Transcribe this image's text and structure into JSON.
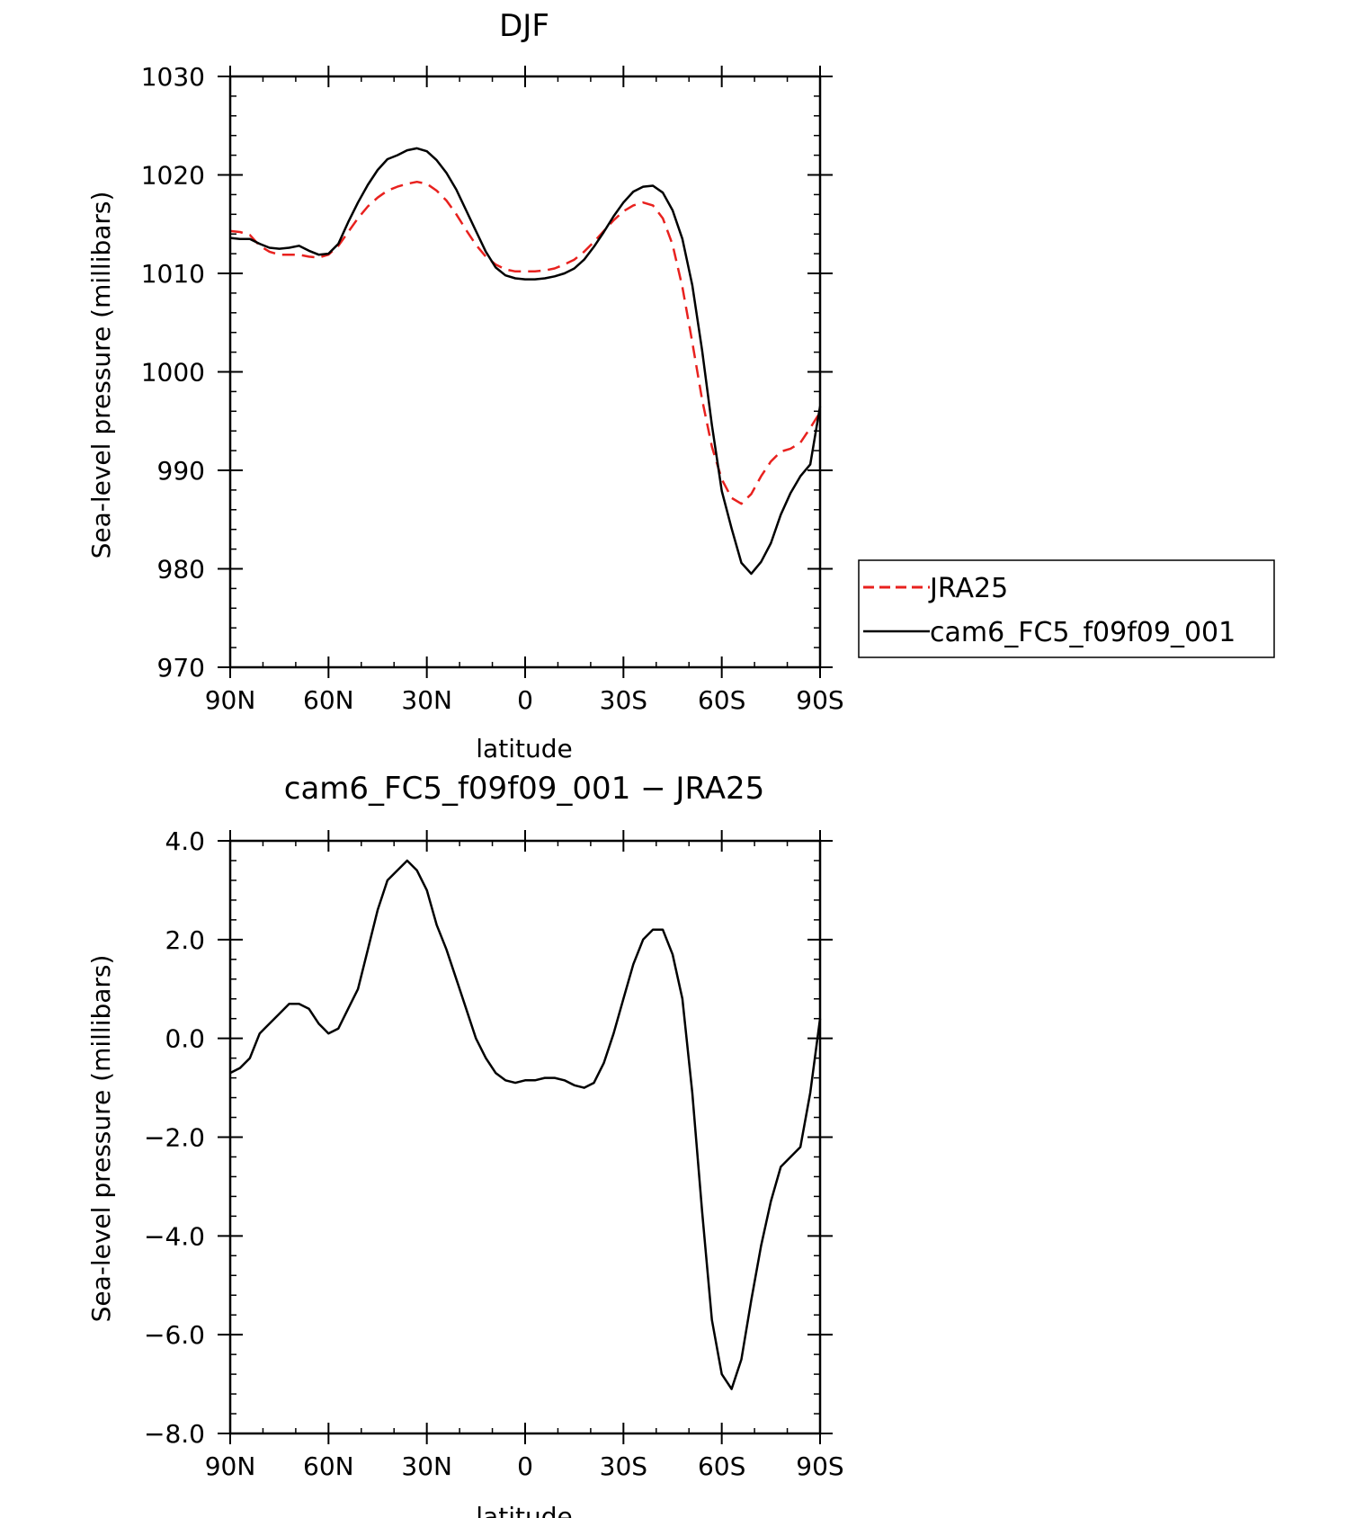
{
  "chart_data": [
    {
      "type": "line",
      "title": "DJF",
      "xlabel": "latitude",
      "ylabel": "Sea-level pressure (millibars)",
      "xlim": [
        90,
        -90
      ],
      "ylim": [
        970,
        1030
      ],
      "xticks": [
        {
          "value": 90,
          "label": "90N"
        },
        {
          "value": 60,
          "label": "60N"
        },
        {
          "value": 30,
          "label": "30N"
        },
        {
          "value": 0,
          "label": "0"
        },
        {
          "value": -30,
          "label": "30S"
        },
        {
          "value": -60,
          "label": "60S"
        },
        {
          "value": -90,
          "label": "90S"
        }
      ],
      "yticks": [
        {
          "value": 1030,
          "label": "1030"
        },
        {
          "value": 1020,
          "label": "1020"
        },
        {
          "value": 1010,
          "label": "1010"
        },
        {
          "value": 1000,
          "label": "1000"
        },
        {
          "value": 990,
          "label": "990"
        },
        {
          "value": 980,
          "label": "980"
        },
        {
          "value": 970,
          "label": "970"
        }
      ],
      "legend": {
        "placement": "right",
        "entries": [
          {
            "label": "JRA25",
            "color": "#e8211e",
            "dash": "dashed"
          },
          {
            "label": "cam6_FC5_f09f09_001",
            "color": "#000000",
            "dash": "solid"
          }
        ]
      },
      "series": [
        {
          "name": "JRA25",
          "color": "#e8211e",
          "dash": "dashed",
          "points": [
            [
              90,
              1014.3
            ],
            [
              87,
              1014.2
            ],
            [
              84,
              1013.9
            ],
            [
              81,
              1012.8
            ],
            [
              78,
              1012.2
            ],
            [
              75,
              1011.9
            ],
            [
              72,
              1011.9
            ],
            [
              69,
              1011.9
            ],
            [
              66,
              1011.7
            ],
            [
              63,
              1011.6
            ],
            [
              60,
              1011.9
            ],
            [
              57,
              1012.8
            ],
            [
              54,
              1014.2
            ],
            [
              51,
              1015.6
            ],
            [
              48,
              1016.8
            ],
            [
              45,
              1017.7
            ],
            [
              42,
              1018.4
            ],
            [
              39,
              1018.8
            ],
            [
              36,
              1019.1
            ],
            [
              33,
              1019.3
            ],
            [
              30,
              1019.1
            ],
            [
              27,
              1018.4
            ],
            [
              24,
              1017.4
            ],
            [
              21,
              1016.0
            ],
            [
              18,
              1014.4
            ],
            [
              15,
              1012.9
            ],
            [
              12,
              1011.7
            ],
            [
              9,
              1010.9
            ],
            [
              6,
              1010.4
            ],
            [
              3,
              1010.2
            ],
            [
              0,
              1010.2
            ],
            [
              -3,
              1010.2
            ],
            [
              -6,
              1010.3
            ],
            [
              -9,
              1010.5
            ],
            [
              -12,
              1010.9
            ],
            [
              -15,
              1011.4
            ],
            [
              -18,
              1012.2
            ],
            [
              -21,
              1013.2
            ],
            [
              -24,
              1014.3
            ],
            [
              -27,
              1015.4
            ],
            [
              -30,
              1016.3
            ],
            [
              -33,
              1016.9
            ],
            [
              -36,
              1017.2
            ],
            [
              -39,
              1016.9
            ],
            [
              -42,
              1015.6
            ],
            [
              -45,
              1012.9
            ],
            [
              -48,
              1008.6
            ],
            [
              -51,
              1003.0
            ],
            [
              -54,
              997.2
            ],
            [
              -57,
              992.4
            ],
            [
              -60,
              989.1
            ],
            [
              -63,
              987.2
            ],
            [
              -66,
              986.6
            ],
            [
              -69,
              987.6
            ],
            [
              -72,
              989.4
            ],
            [
              -75,
              990.9
            ],
            [
              -78,
              991.9
            ],
            [
              -81,
              992.2
            ],
            [
              -84,
              992.8
            ],
            [
              -87,
              994.3
            ],
            [
              -90,
              995.9
            ]
          ]
        },
        {
          "name": "cam6_FC5_f09f09_001",
          "color": "#000000",
          "dash": "solid",
          "points": [
            [
              90,
              1013.6
            ],
            [
              87,
              1013.5
            ],
            [
              84,
              1013.5
            ],
            [
              81,
              1013.0
            ],
            [
              78,
              1012.6
            ],
            [
              75,
              1012.5
            ],
            [
              72,
              1012.6
            ],
            [
              69,
              1012.8
            ],
            [
              66,
              1012.3
            ],
            [
              63,
              1011.9
            ],
            [
              60,
              1012.0
            ],
            [
              57,
              1013.0
            ],
            [
              54,
              1015.2
            ],
            [
              51,
              1017.2
            ],
            [
              48,
              1019.0
            ],
            [
              45,
              1020.5
            ],
            [
              42,
              1021.6
            ],
            [
              39,
              1022.0
            ],
            [
              36,
              1022.5
            ],
            [
              33,
              1022.7
            ],
            [
              30,
              1022.4
            ],
            [
              27,
              1021.5
            ],
            [
              24,
              1020.2
            ],
            [
              21,
              1018.5
            ],
            [
              18,
              1016.4
            ],
            [
              15,
              1014.3
            ],
            [
              12,
              1012.2
            ],
            [
              9,
              1010.6
            ],
            [
              6,
              1009.8
            ],
            [
              3,
              1009.5
            ],
            [
              0,
              1009.4
            ],
            [
              -3,
              1009.4
            ],
            [
              -6,
              1009.5
            ],
            [
              -9,
              1009.7
            ],
            [
              -12,
              1010.0
            ],
            [
              -15,
              1010.5
            ],
            [
              -18,
              1011.4
            ],
            [
              -21,
              1012.7
            ],
            [
              -24,
              1014.2
            ],
            [
              -27,
              1015.8
            ],
            [
              -30,
              1017.2
            ],
            [
              -33,
              1018.3
            ],
            [
              -36,
              1018.8
            ],
            [
              -39,
              1018.9
            ],
            [
              -42,
              1018.2
            ],
            [
              -45,
              1016.4
            ],
            [
              -48,
              1013.5
            ],
            [
              -51,
              1008.8
            ],
            [
              -54,
              1002.2
            ],
            [
              -57,
              994.6
            ],
            [
              -60,
              987.9
            ],
            [
              -63,
              984.1
            ],
            [
              -66,
              980.6
            ],
            [
              -69,
              979.5
            ],
            [
              -72,
              980.7
            ],
            [
              -75,
              982.6
            ],
            [
              -78,
              985.5
            ],
            [
              -81,
              987.7
            ],
            [
              -84,
              989.4
            ],
            [
              -87,
              990.6
            ],
            [
              -90,
              996.5
            ]
          ]
        }
      ]
    },
    {
      "type": "line",
      "title": "cam6_FC5_f09f09_001 − JRA25",
      "xlabel": "latitude",
      "ylabel": "Sea-level pressure (millibars)",
      "xlim": [
        90,
        -90
      ],
      "ylim": [
        -8.0,
        4.0
      ],
      "xticks": [
        {
          "value": 90,
          "label": "90N"
        },
        {
          "value": 60,
          "label": "60N"
        },
        {
          "value": 30,
          "label": "30N"
        },
        {
          "value": 0,
          "label": "0"
        },
        {
          "value": -30,
          "label": "30S"
        },
        {
          "value": -60,
          "label": "60S"
        },
        {
          "value": -90,
          "label": "90S"
        }
      ],
      "yticks": [
        {
          "value": 4.0,
          "label": "4.0"
        },
        {
          "value": 2.0,
          "label": "2.0"
        },
        {
          "value": 0.0,
          "label": "0.0"
        },
        {
          "value": -2.0,
          "label": "−2.0"
        },
        {
          "value": -4.0,
          "label": "−4.0"
        },
        {
          "value": -6.0,
          "label": "−6.0"
        },
        {
          "value": -8.0,
          "label": "−8.0"
        }
      ],
      "series": [
        {
          "color": "#000000",
          "dash": "solid",
          "points": [
            [
              90,
              -0.7
            ],
            [
              87,
              -0.6
            ],
            [
              84,
              -0.4
            ],
            [
              81,
              0.1
            ],
            [
              78,
              0.3
            ],
            [
              75,
              0.5
            ],
            [
              72,
              0.7
            ],
            [
              69,
              0.7
            ],
            [
              66,
              0.6
            ],
            [
              63,
              0.3
            ],
            [
              60,
              0.1
            ],
            [
              57,
              0.2
            ],
            [
              54,
              0.6
            ],
            [
              51,
              1.0
            ],
            [
              48,
              1.8
            ],
            [
              45,
              2.6
            ],
            [
              42,
              3.2
            ],
            [
              39,
              3.4
            ],
            [
              36,
              3.6
            ],
            [
              33,
              3.4
            ],
            [
              30,
              3.0
            ],
            [
              27,
              2.3
            ],
            [
              24,
              1.8
            ],
            [
              21,
              1.2
            ],
            [
              18,
              0.6
            ],
            [
              15,
              0.0
            ],
            [
              12,
              -0.4
            ],
            [
              9,
              -0.7
            ],
            [
              6,
              -0.85
            ],
            [
              3,
              -0.9
            ],
            [
              0,
              -0.85
            ],
            [
              -3,
              -0.85
            ],
            [
              -6,
              -0.8
            ],
            [
              -9,
              -0.8
            ],
            [
              -12,
              -0.85
            ],
            [
              -15,
              -0.95
            ],
            [
              -18,
              -1.0
            ],
            [
              -21,
              -0.9
            ],
            [
              -24,
              -0.5
            ],
            [
              -27,
              0.1
            ],
            [
              -30,
              0.8
            ],
            [
              -33,
              1.5
            ],
            [
              -36,
              2.0
            ],
            [
              -39,
              2.2
            ],
            [
              -42,
              2.2
            ],
            [
              -45,
              1.7
            ],
            [
              -48,
              0.8
            ],
            [
              -51,
              -1.1
            ],
            [
              -54,
              -3.5
            ],
            [
              -57,
              -5.7
            ],
            [
              -60,
              -6.8
            ],
            [
              -63,
              -7.1
            ],
            [
              -66,
              -6.5
            ],
            [
              -69,
              -5.3
            ],
            [
              -72,
              -4.2
            ],
            [
              -75,
              -3.3
            ],
            [
              -78,
              -2.6
            ],
            [
              -81,
              -2.4
            ],
            [
              -84,
              -2.2
            ],
            [
              -87,
              -1.1
            ],
            [
              -90,
              0.4
            ]
          ]
        }
      ]
    }
  ]
}
